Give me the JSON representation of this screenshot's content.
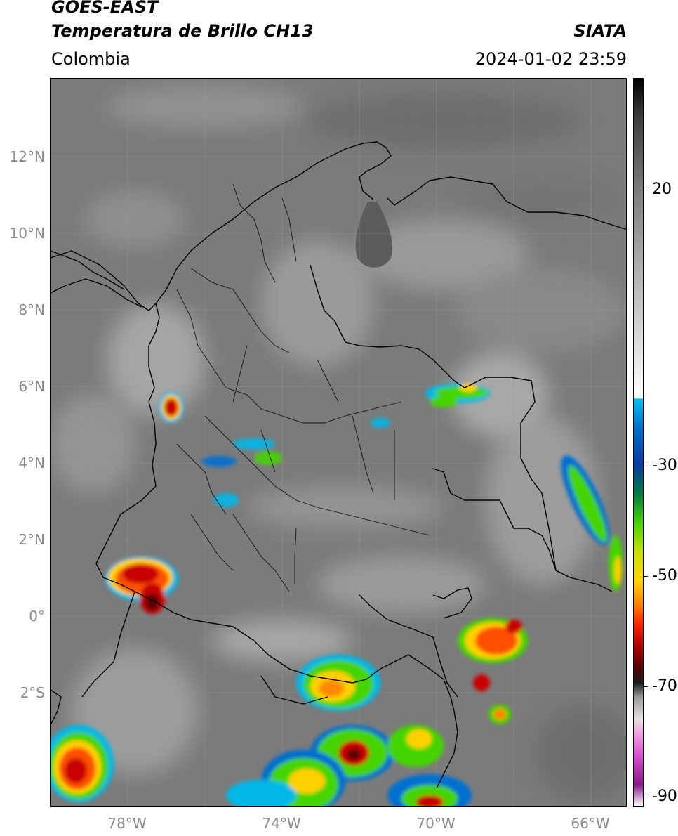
{
  "header": {
    "line1": "GOES-EAST",
    "line2": "Temperatura de Brillo CH13",
    "region": "Colombia",
    "organization": "SIATA",
    "timestamp": "2024-01-02 23:59"
  },
  "axes": {
    "latitude_labels": [
      "12°N",
      "10°N",
      "8°N",
      "6°N",
      "4°N",
      "2°N",
      "0°",
      "2°S"
    ],
    "longitude_labels": [
      "78°W",
      "74°W",
      "70°W",
      "66°W"
    ]
  },
  "colorbar": {
    "tick_labels": [
      "20",
      "-30",
      "-50",
      "-70",
      "-90"
    ],
    "scale_colors": [
      "#ffffff",
      "#8b1a8b",
      "#d94fcf",
      "#f0a0e0",
      "#e8e0e0",
      "#9a9a9a",
      "#1a1a1a",
      "#550000",
      "#b00000",
      "#ff2200",
      "#ff8800",
      "#ffd400",
      "#c8e000",
      "#44d400",
      "#007a40",
      "#0a3aa0",
      "#0070d0",
      "#00c0f0",
      "#ffffff",
      "#c0c0c0",
      "#7a7a7a",
      "#3a3a3a",
      "#000000"
    ]
  },
  "colors": {
    "cold_core": "#5a0000",
    "deep_red": "#c80000",
    "orange": "#ff8c00",
    "yellow": "#ffd000",
    "green": "#40cc00",
    "blue": "#0060c0",
    "cyan": "#00b8e8"
  }
}
